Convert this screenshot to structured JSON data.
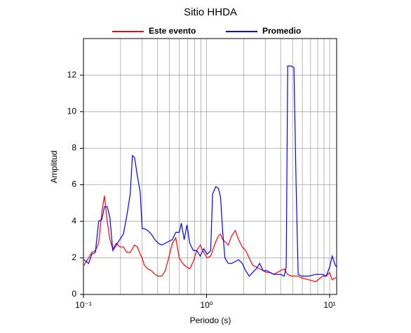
{
  "chart_data": {
    "type": "line",
    "title": "Sitio HHDA",
    "xlabel": "Periodo (s)",
    "ylabel": "Amplitud",
    "xscale": "log",
    "xlim": [
      0.1,
      11.4
    ],
    "ylim": [
      0,
      14
    ],
    "xticks": [
      {
        "value": 0.1,
        "label": "10⁻¹"
      },
      {
        "value": 1,
        "label": "10⁰"
      },
      {
        "value": 10,
        "label": "10¹"
      }
    ],
    "x_minor_ticks": [
      0.2,
      0.3,
      0.4,
      0.5,
      0.6,
      0.7,
      0.8,
      0.9,
      2,
      3,
      4,
      5,
      6,
      7,
      8,
      9
    ],
    "yticks": [
      0,
      2,
      4,
      6,
      8,
      10,
      12
    ],
    "grid": true,
    "legend": "top",
    "x": [
      0.101,
      0.11,
      0.117,
      0.125,
      0.133,
      0.141,
      0.148,
      0.156,
      0.164,
      0.173,
      0.185,
      0.197,
      0.211,
      0.225,
      0.24,
      0.25,
      0.26,
      0.274,
      0.289,
      0.3,
      0.312,
      0.333,
      0.356,
      0.38,
      0.406,
      0.433,
      0.462,
      0.493,
      0.527,
      0.562,
      0.6,
      0.624,
      0.658,
      0.693,
      0.731,
      0.78,
      0.832,
      0.889,
      0.949,
      1.01,
      1.08,
      1.12,
      1.19,
      1.25,
      1.3,
      1.35,
      1.41,
      1.5,
      1.6,
      1.71,
      1.82,
      1.95,
      2.08,
      2.22,
      2.37,
      2.53,
      2.7,
      2.88,
      3.08,
      3.29,
      3.51,
      3.75,
      4.0,
      4.27,
      4.44,
      4.56,
      4.87,
      5.13,
      5.34,
      5.55,
      5.93,
      6.76,
      7.7,
      8.77,
      9.37,
      10.0,
      10.5,
      11.1,
      11.4
    ],
    "series": [
      {
        "name": "Este evento",
        "color": "#ff0000",
        "values": [
          1.6,
          2.0,
          2.3,
          2.4,
          2.8,
          4.5,
          5.4,
          4.0,
          3.0,
          2.5,
          2.8,
          2.6,
          2.6,
          2.3,
          2.3,
          2.5,
          2.7,
          2.6,
          2.2,
          2.0,
          1.6,
          1.4,
          1.3,
          1.1,
          1.0,
          1.0,
          1.3,
          2.0,
          2.8,
          3.1,
          2.0,
          1.8,
          1.6,
          1.5,
          1.4,
          1.8,
          2.4,
          2.7,
          2.3,
          2.0,
          2.1,
          2.4,
          2.9,
          3.2,
          3.3,
          3.0,
          2.9,
          2.7,
          3.2,
          3.5,
          3.0,
          2.6,
          2.4,
          2.0,
          1.6,
          1.5,
          1.4,
          1.3,
          1.2,
          1.2,
          1.1,
          1.2,
          1.3,
          1.4,
          1.2,
          1.1,
          1.0,
          1.0,
          1.0,
          1.0,
          0.9,
          0.8,
          0.7,
          1.0,
          1.0,
          1.2,
          0.8,
          0.9,
          0.9
        ]
      },
      {
        "name": "Promedio",
        "color": "#0000ff",
        "values": [
          1.9,
          1.7,
          2.2,
          2.3,
          4.0,
          4.1,
          4.8,
          4.8,
          4.2,
          2.4,
          2.7,
          3.0,
          3.3,
          4.3,
          5.5,
          7.6,
          7.5,
          6.5,
          5.6,
          3.6,
          3.6,
          3.5,
          3.3,
          3.0,
          2.8,
          2.7,
          2.8,
          2.9,
          3.0,
          3.4,
          3.4,
          3.9,
          3.0,
          3.8,
          2.8,
          2.4,
          2.4,
          2.1,
          2.5,
          2.2,
          2.4,
          5.5,
          5.9,
          5.8,
          5.3,
          3.5,
          2.0,
          1.7,
          1.7,
          1.8,
          1.9,
          1.7,
          1.3,
          1.0,
          1.2,
          1.4,
          1.7,
          1.3,
          1.3,
          1.2,
          1.1,
          1.1,
          1.1,
          1.0,
          1.5,
          12.5,
          12.5,
          12.4,
          6.0,
          1.1,
          1.0,
          1.0,
          1.1,
          1.1,
          1.0,
          1.5,
          2.1,
          1.6,
          1.5
        ]
      }
    ]
  }
}
